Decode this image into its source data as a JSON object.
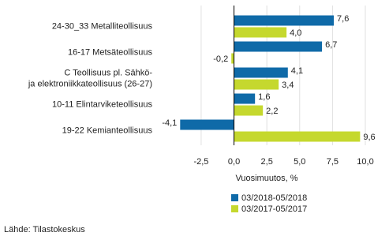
{
  "chart_data": {
    "type": "bar",
    "orientation": "horizontal",
    "categories": [
      "24-30_33 Metalliteollisuus",
      "16-17 Metsäteollisuus",
      "C Teollisuus pl. Sähkö-\nja elektroniikkateollisuus (26-27)",
      "10-11 Elintarviketeollisuus",
      "19-22 Kemianteollisuus"
    ],
    "series": [
      {
        "name": "03/2018-05/2018",
        "color": "#0f6aa8",
        "values": [
          7.6,
          6.7,
          4.1,
          1.6,
          -4.1
        ],
        "value_labels": [
          "7,6",
          "6,7",
          "4,1",
          "1,6",
          "-4,1"
        ]
      },
      {
        "name": "03/2017-05/2017",
        "color": "#c5d82e",
        "values": [
          4.0,
          -0.2,
          3.4,
          2.2,
          9.6
        ],
        "value_labels": [
          "4,0",
          "-0,2",
          "3,4",
          "2,2",
          "9,6"
        ]
      }
    ],
    "xlim": [
      -5.8,
      10.6
    ],
    "xticks": [
      {
        "value": -2.5,
        "label": "-2,5"
      },
      {
        "value": 0,
        "label": "0,0"
      },
      {
        "value": 2.5,
        "label": "2,5"
      },
      {
        "value": 5,
        "label": "5,0"
      },
      {
        "value": 7.5,
        "label": "7,5"
      },
      {
        "value": 10,
        "label": "10,0"
      }
    ],
    "x_label": "Vuosimuutos, %",
    "grid": true,
    "legend": "bottom",
    "source": "Lähde: Tilastokeskus"
  }
}
